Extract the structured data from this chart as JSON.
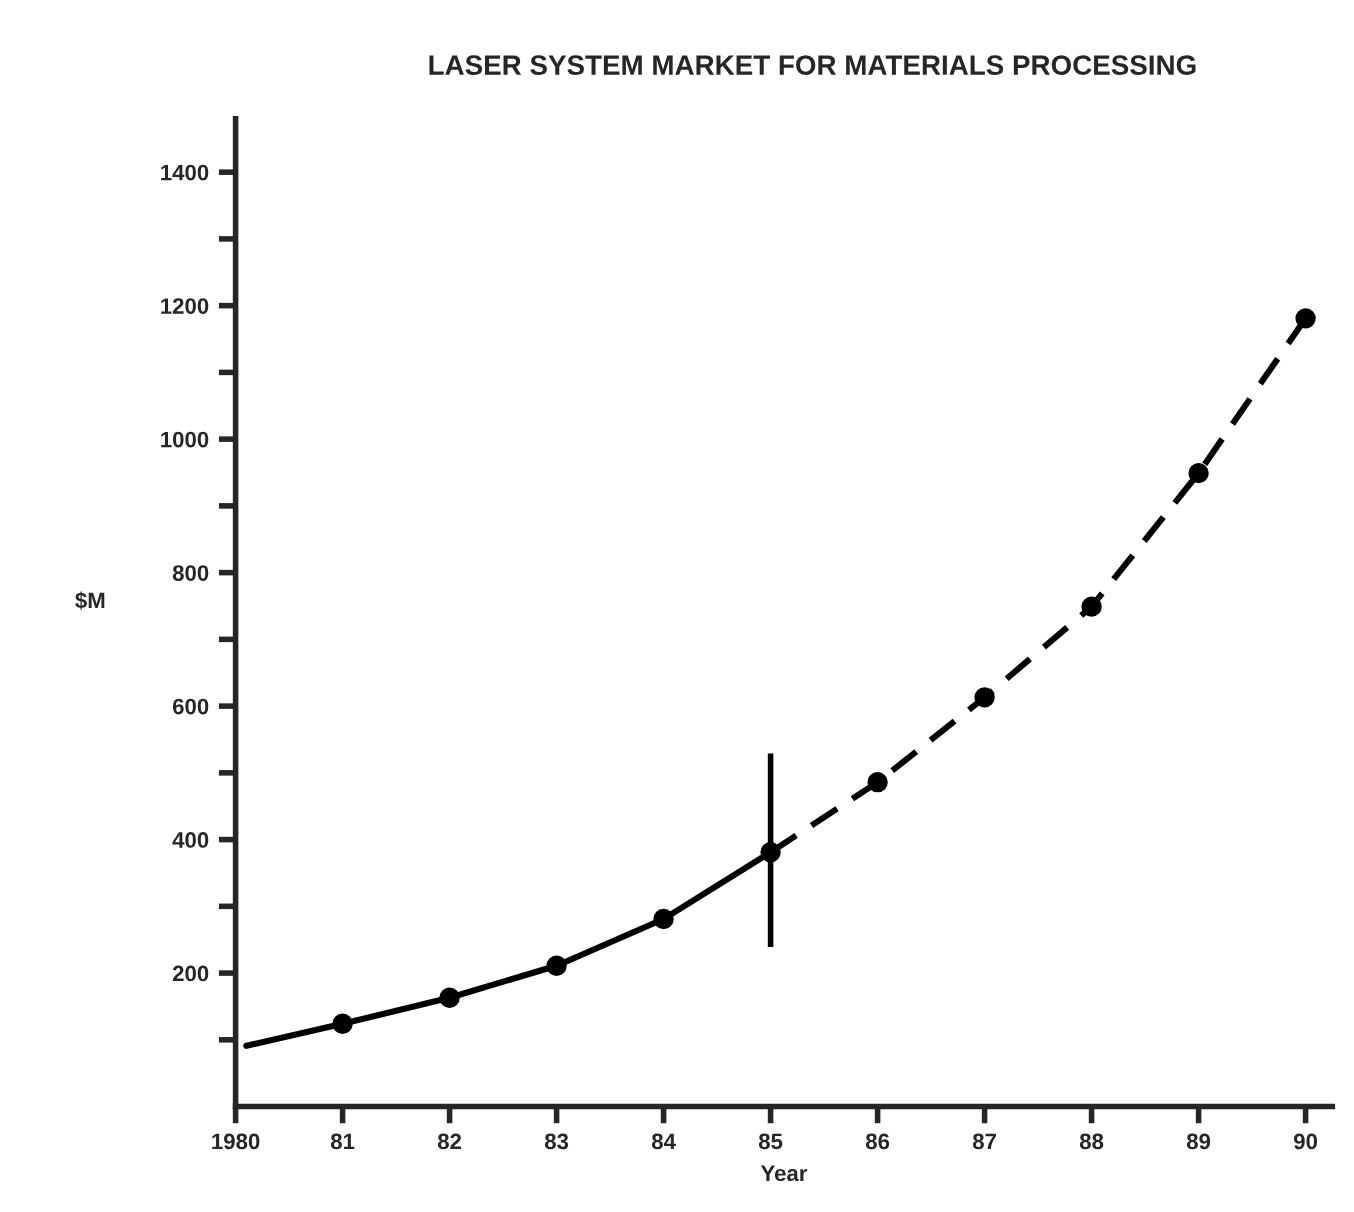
{
  "chart_data": {
    "type": "line",
    "title": "LASER SYSTEM MARKET FOR MATERIALS PROCESSING",
    "xlabel": "Year",
    "ylabel": "$M",
    "xlim": [
      1980,
      1990.25
    ],
    "ylim": [
      0,
      1480
    ],
    "xticks": [
      {
        "value": 1980,
        "label": "1980"
      },
      {
        "value": 1981,
        "label": "81"
      },
      {
        "value": 1982,
        "label": "82"
      },
      {
        "value": 1983,
        "label": "83"
      },
      {
        "value": 1984,
        "label": "84"
      },
      {
        "value": 1985,
        "label": "85"
      },
      {
        "value": 1986,
        "label": "86"
      },
      {
        "value": 1987,
        "label": "87"
      },
      {
        "value": 1988,
        "label": "88"
      },
      {
        "value": 1989,
        "label": "89"
      },
      {
        "value": 1990,
        "label": "90"
      }
    ],
    "yticks": [
      {
        "value": 100,
        "label": null
      },
      200,
      {
        "value": 300,
        "label": null
      },
      400,
      {
        "value": 500,
        "label": null
      },
      600,
      {
        "value": 700,
        "label": null
      },
      800,
      {
        "value": 900,
        "label": null
      },
      1000,
      {
        "value": 1100,
        "label": null
      },
      1200,
      {
        "value": 1300,
        "label": null
      },
      1400
    ],
    "grid": false,
    "legend": false,
    "series": [
      {
        "color": "#000000",
        "line_style": "solid",
        "marker": "none",
        "x": [
          1980.1,
          1981,
          1982,
          1983,
          1984,
          1985
        ],
        "values": [
          91,
          124,
          163,
          211,
          281,
          381
        ]
      },
      {
        "color": "#000000",
        "line_style": "dashed",
        "marker": "none",
        "x": [
          1985,
          1986,
          1987,
          1988,
          1989,
          1990
        ],
        "values": [
          381,
          486,
          613,
          749,
          949,
          1181
        ]
      },
      {
        "type": "scatter",
        "color": "#000000",
        "marker": "circle",
        "x": [
          1981,
          1982,
          1983,
          1984,
          1985,
          1986,
          1987,
          1988,
          1989,
          1990
        ],
        "values": [
          124,
          163,
          211,
          281,
          381,
          486,
          613,
          749,
          949,
          1181
        ],
        "errors": [
          null,
          null,
          null,
          null,
          [
            239,
            529
          ],
          null,
          null,
          null,
          null,
          null
        ]
      }
    ]
  }
}
